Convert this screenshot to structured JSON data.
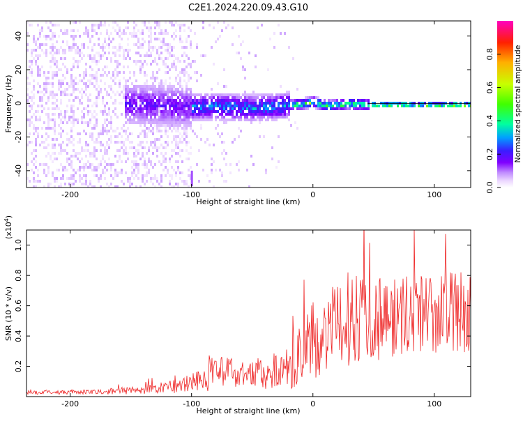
{
  "title": "C2E1.2024.220.09.43.G10",
  "chart_data": [
    {
      "type": "heatmap",
      "xlabel": "Height of straight line (km)",
      "ylabel": "Frequency (Hz)",
      "xlim": [
        -236,
        130
      ],
      "ylim": [
        -50,
        49
      ],
      "x_ticks": [
        -200,
        -100,
        0,
        100
      ],
      "y_ticks": [
        -40,
        -20,
        0,
        20,
        40
      ],
      "x_tick_labels": [
        "-200",
        "-100",
        "0",
        "100"
      ],
      "y_tick_labels": [
        "-40",
        "-20",
        "0",
        "20",
        "40"
      ],
      "colorbar": {
        "label": "Normalized spectral amplitude",
        "range": [
          0,
          1
        ],
        "ticks": [
          0.0,
          0.2,
          0.4,
          0.6,
          0.8
        ],
        "tick_labels": [
          "0.0",
          "0.2",
          "0.4",
          "0.6",
          "0.8"
        ],
        "colormap": [
          "#ffffff",
          "#ecd8ff",
          "#c08cff",
          "#8000ff",
          "#3b1cff",
          "#00a0ff",
          "#00ffa0",
          "#40ff00",
          "#c8ff00",
          "#ffb000",
          "#ff2000",
          "#ff00c0"
        ]
      },
      "signal_track": [
        {
          "x": -150,
          "y": 0.5
        },
        {
          "x": -100,
          "y": -1.5
        },
        {
          "x": -80,
          "y": -1.0
        },
        {
          "x": -50,
          "y": -2.0
        },
        {
          "x": -30,
          "y": -1.0
        },
        {
          "x": -10,
          "y": 0.5
        },
        {
          "x": 0,
          "y": 1.5
        },
        {
          "x": 10,
          "y": -0.5
        },
        {
          "x": 30,
          "y": 0.5
        },
        {
          "x": 45,
          "y": 0.0
        },
        {
          "x": 60,
          "y": 0.0
        },
        {
          "x": 130,
          "y": 0.0
        }
      ]
    },
    {
      "type": "line",
      "xlabel": "Height of straight line (km)",
      "ylabel": "SNR (10 * v/v)",
      "y_multiplier": "(x10",
      "y_multiplier_exp": "4",
      "y_multiplier_close": ")",
      "xlim": [
        -236,
        130
      ],
      "ylim": [
        0,
        11000
      ],
      "x_ticks": [
        -200,
        -100,
        0,
        100
      ],
      "x_tick_labels": [
        "-200",
        "-100",
        "0",
        "100"
      ],
      "y_ticks": [
        2000,
        4000,
        6000,
        8000,
        10000
      ],
      "y_tick_labels": [
        "0.2",
        "0.4",
        "0.6",
        "0.8",
        "1.0"
      ],
      "line_color": "#ee2222",
      "envelope": [
        {
          "x": -236,
          "mean": 300,
          "amp": 150
        },
        {
          "x": -180,
          "mean": 300,
          "amp": 150
        },
        {
          "x": -140,
          "mean": 450,
          "amp": 300
        },
        {
          "x": -110,
          "mean": 700,
          "amp": 500
        },
        {
          "x": -90,
          "mean": 1200,
          "amp": 900
        },
        {
          "x": -70,
          "mean": 1700,
          "amp": 1100
        },
        {
          "x": -50,
          "mean": 1500,
          "amp": 1000
        },
        {
          "x": -30,
          "mean": 1700,
          "amp": 1200
        },
        {
          "x": -15,
          "mean": 2300,
          "amp": 1800
        },
        {
          "x": 0,
          "mean": 3700,
          "amp": 2500
        },
        {
          "x": 20,
          "mean": 4600,
          "amp": 2900
        },
        {
          "x": 35,
          "mean": 5500,
          "amp": 3300
        },
        {
          "x": 60,
          "mean": 5200,
          "amp": 2800
        },
        {
          "x": 90,
          "mean": 5500,
          "amp": 2700
        },
        {
          "x": 130,
          "mean": 5600,
          "amp": 2700
        }
      ]
    }
  ]
}
